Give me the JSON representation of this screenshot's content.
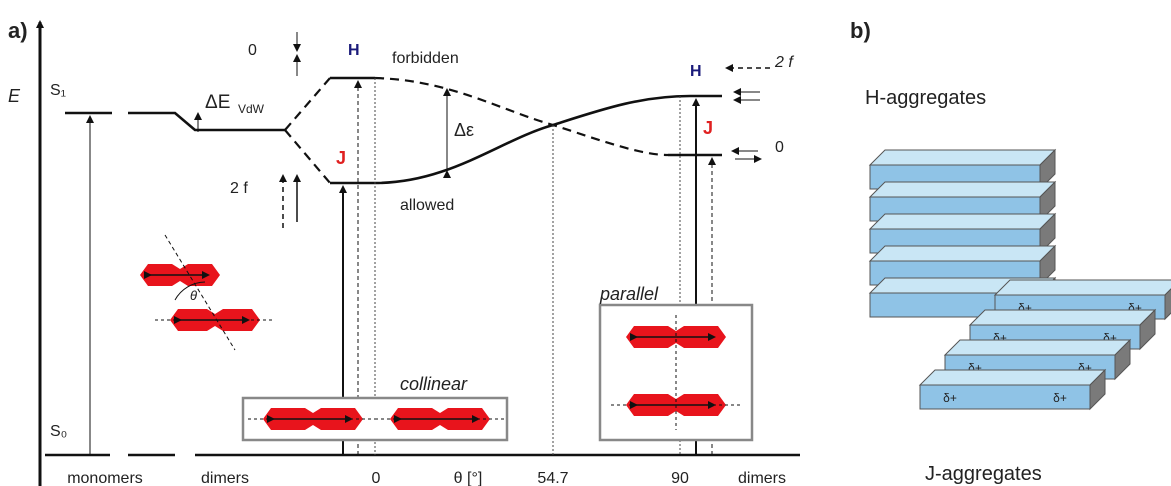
{
  "panel_a": {
    "label": "a)",
    "energy_axis": "E",
    "s1": "S₁",
    "s0": "S₀",
    "delta_e_vdw": {
      "main": "ΔE",
      "sub": "VdW"
    },
    "zero_top": "0",
    "two_f_left": "2 f",
    "h_left": "H",
    "j_left": "J",
    "forbidden": "forbidden",
    "allowed": "allowed",
    "delta_epsilon": "Δε",
    "theta": "θ",
    "collinear": "collinear",
    "parallel": "parallel",
    "h_right": "H",
    "j_right": "J",
    "two_f_right": "2 f",
    "zero_right": "0",
    "x_labels": [
      "monomers",
      "dimers",
      "0",
      "θ [°]",
      "54.7",
      "90",
      "dimers"
    ]
  },
  "panel_b": {
    "label": "b)",
    "h_aggregates": "H-aggregates",
    "j_aggregates": "J-aggregates",
    "charges": [
      "δ+",
      "δ+",
      "δ+",
      "δ+",
      "δ+",
      "δ+",
      "δ+",
      "δ+"
    ]
  }
}
